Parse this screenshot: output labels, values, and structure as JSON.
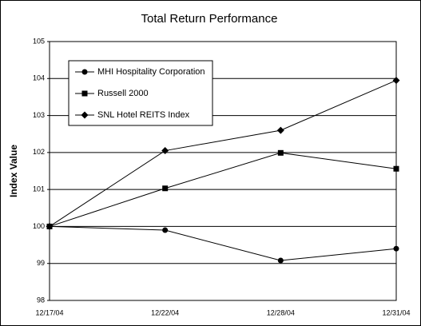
{
  "chart_data": {
    "type": "line",
    "title": "Total Return Performance",
    "y_label": "Index Value",
    "categories": [
      "12/17/04",
      "12/22/04",
      "12/28/04",
      "12/31/04"
    ],
    "series": [
      {
        "name": "MHI Hospitality Corporation",
        "marker": "circle",
        "color": "#000000",
        "values": [
          100,
          99.9,
          99.08,
          99.4
        ]
      },
      {
        "name": "Russell 2000",
        "marker": "square",
        "color": "#000000",
        "values": [
          100,
          101.03,
          101.99,
          101.56
        ]
      },
      {
        "name": "SNL Hotel REITS Index",
        "marker": "diamond",
        "color": "#000000",
        "values": [
          100,
          102.05,
          102.6,
          103.95
        ]
      }
    ],
    "ylim": [
      98,
      105
    ],
    "yticks": [
      98,
      99,
      100,
      101,
      102,
      103,
      104,
      105
    ],
    "grid": true
  }
}
